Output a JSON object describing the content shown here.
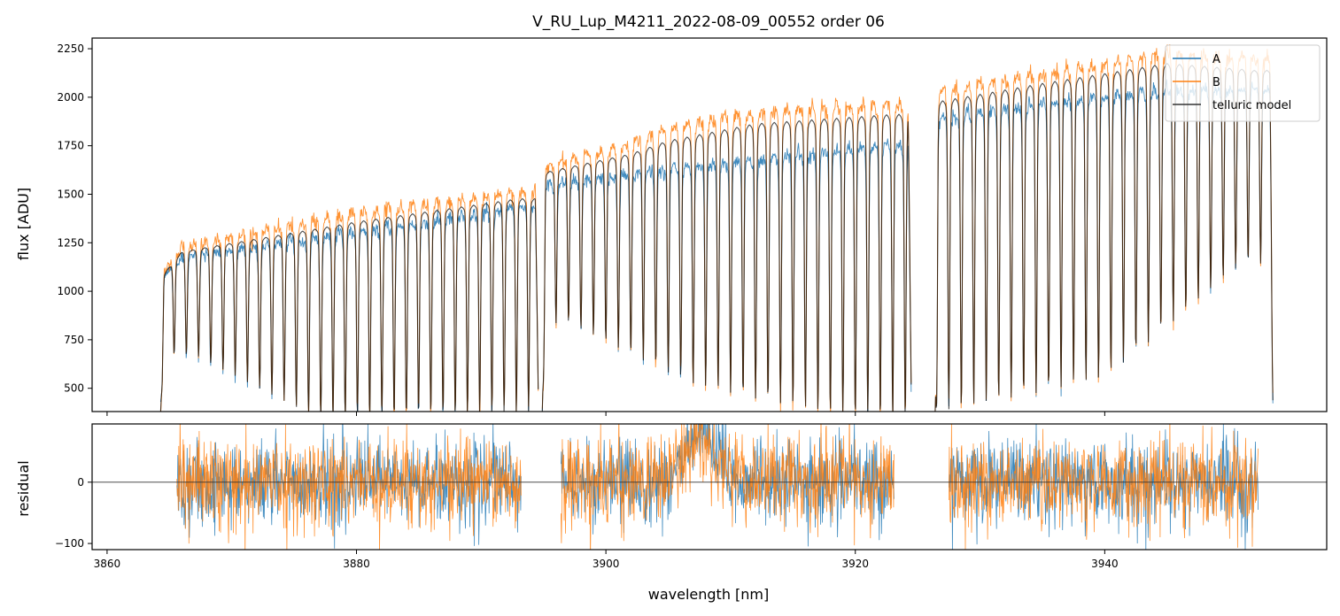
{
  "chart_data": [
    {
      "type": "line",
      "title": "V_RU_Lup_M4211_2022-08-09_00552  order 06",
      "ylabel": "flux [ADU]",
      "xlim": [
        3858.8,
        3957.8
      ],
      "ylim": [
        380,
        2305
      ],
      "yticks": [
        500,
        750,
        1000,
        1250,
        1500,
        1750,
        2000,
        2250
      ],
      "ytick_labels": [
        "500",
        "750",
        "1000",
        "1250",
        "1500",
        "1750",
        "2000",
        "2250"
      ],
      "xticks": [
        3860,
        3880,
        3900,
        3920,
        3940
      ],
      "legend": {
        "placement": "top-right",
        "entries": [
          "A",
          "B",
          "telluric model"
        ]
      },
      "colors": {
        "A": "#1f77b4",
        "B": "#ff7f0e",
        "telluric model": "#000000"
      },
      "segments": [
        {
          "x_range": [
            3864.3,
            3894.6
          ],
          "continuum_A": {
            "x": [
              3864.5,
              3866,
              3880,
              3893
            ],
            "y": [
              1080,
              1185,
              1320,
              1450
            ]
          },
          "continuum_B": {
            "x": [
              3864.5,
              3866,
              3880,
              3893
            ],
            "y": [
              1100,
              1240,
              1420,
              1530
            ]
          },
          "continuum_model": {
            "x": [
              3864.5,
              3866,
              3880,
              3893
            ],
            "y": [
              1090,
              1210,
              1370,
              1490
            ]
          },
          "line_spacing_nm": 0.98,
          "line_depth_min": [
            3867,
            700,
            3877,
            400,
            3893,
            440
          ]
        },
        {
          "x_range": [
            3894.9,
            3924.5
          ],
          "continuum_A": {
            "x": [
              3895,
              3902,
              3905,
              3912,
              3923
            ],
            "y": [
              1560,
              1620,
              1650,
              1700,
              1780
            ]
          },
          "continuum_B": {
            "x": [
              3895,
              3902,
              3905,
              3912,
              3923
            ],
            "y": [
              1660,
              1780,
              1860,
              1950,
              1990
            ]
          },
          "continuum_model": {
            "x": [
              3895,
              3902,
              3905,
              3912,
              3923
            ],
            "y": [
              1620,
              1720,
              1790,
              1880,
              1930
            ]
          },
          "line_spacing_nm": 1.0,
          "line_depth_min": [
            3897,
            880,
            3907,
            590,
            3920,
            430
          ]
        },
        {
          "x_range": [
            3926.4,
            3953.5
          ],
          "continuum_A": {
            "x": [
              3927,
              3935,
              3945,
              3952
            ],
            "y": [
              1920,
              1990,
              2060,
              2050
            ]
          },
          "continuum_B": {
            "x": [
              3927,
              3935,
              3945,
              3952
            ],
            "y": [
              2060,
              2150,
              2250,
              2210
            ]
          },
          "continuum_model": {
            "x": [
              3927,
              3935,
              3945,
              3952
            ],
            "y": [
              2000,
              2090,
              2190,
              2150
            ]
          },
          "line_spacing_nm": 1.0,
          "line_depth_min": [
            3928,
            480,
            3940,
            640,
            3951,
            1200
          ]
        }
      ]
    },
    {
      "type": "line",
      "xlabel": "wavelength [nm]",
      "ylabel": "residual",
      "xlim": [
        3858.8,
        3957.8
      ],
      "ylim": [
        -110,
        95
      ],
      "yticks": [
        -100,
        0
      ],
      "ytick_labels": [
        "−100",
        "0"
      ],
      "xticks": [
        3860,
        3880,
        3900,
        3920,
        3940
      ],
      "xtick_labels": [
        "3860",
        "3880",
        "3900",
        "3920",
        "3940"
      ],
      "zero_line": true,
      "series": [
        {
          "name": "A",
          "color": "#1f77b4",
          "noise_amplitude": 45
        },
        {
          "name": "B",
          "color": "#ff7f0e",
          "noise_amplitude": 48
        }
      ],
      "segments": [
        {
          "x_range": [
            3865.6,
            3893.2
          ]
        },
        {
          "x_range": [
            3896.4,
            3923.1
          ],
          "bump": {
            "center": 3907.6,
            "height": 70,
            "width": 1.3
          }
        },
        {
          "x_range": [
            3927.5,
            3952.3
          ]
        }
      ]
    }
  ]
}
